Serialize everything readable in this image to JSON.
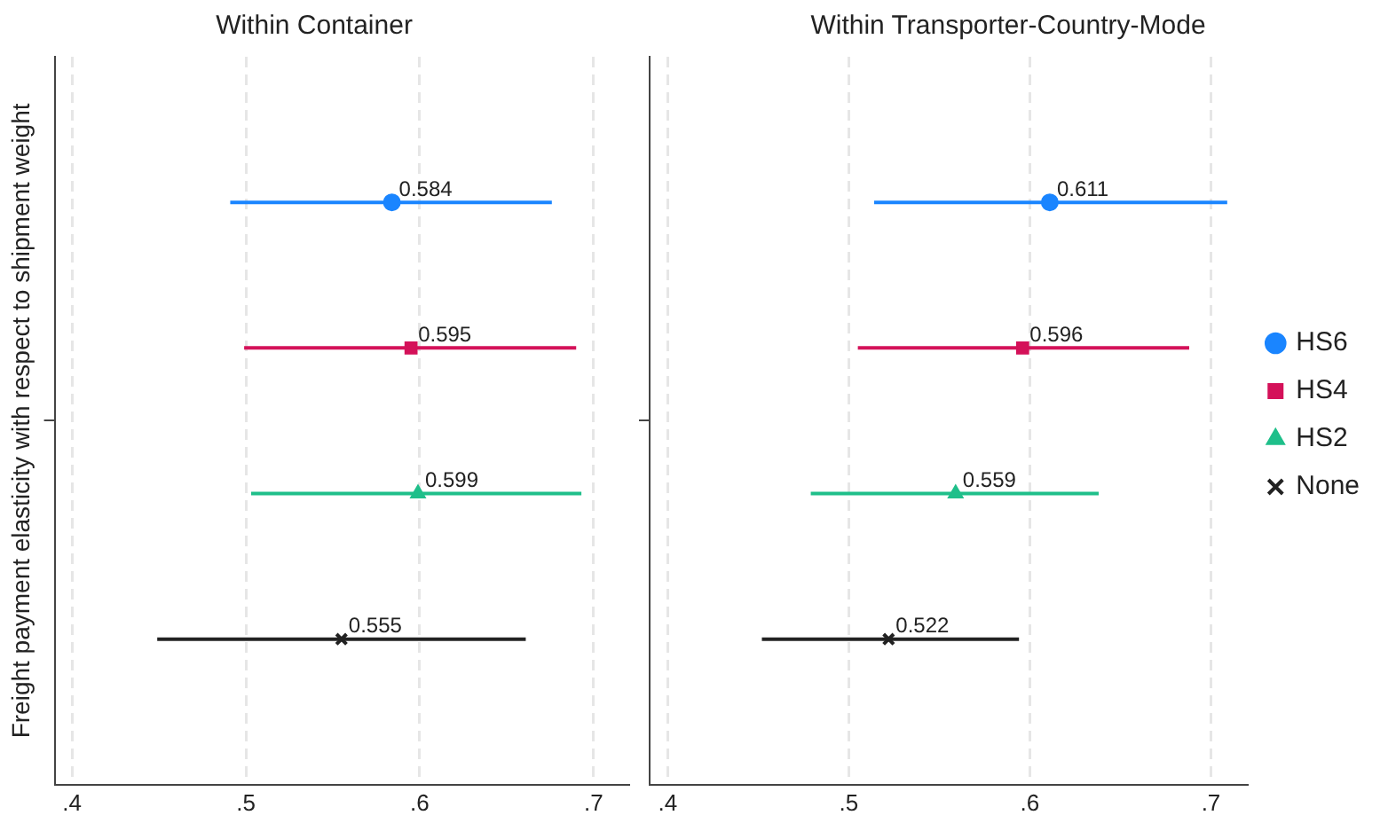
{
  "chart_data": [
    {
      "type": "scatter",
      "title": "Within Container",
      "ylabel": "Freight payment elasticity with respect to shipment weight",
      "orientation": "horizontal",
      "categories": [
        null
      ],
      "xlim": [
        0.39,
        0.72
      ],
      "xticks": [
        {
          "value": 0.4,
          "label": ".4"
        },
        {
          "value": 0.5,
          "label": ".5"
        },
        {
          "value": 0.6,
          "label": ".6"
        },
        {
          "value": 0.7,
          "label": ".7"
        }
      ],
      "grid": "x",
      "legend": false,
      "tick_labels": "x",
      "data_labels": true,
      "series": [
        {
          "color": "#1a85ff",
          "marker": "circle",
          "values": [
            0.584
          ],
          "errors": [
            [
              0.491,
              0.676
            ]
          ]
        },
        {
          "color": "#d41159",
          "marker": "square",
          "values": [
            0.595
          ],
          "errors": [
            [
              0.499,
              0.69
            ]
          ]
        },
        {
          "color": "#1fbf8a",
          "marker": "triangle",
          "values": [
            0.599
          ],
          "errors": [
            [
              0.503,
              0.693
            ]
          ]
        },
        {
          "color": "#222222",
          "marker": "cross",
          "values": [
            0.555
          ],
          "errors": [
            [
              0.449,
              0.661
            ]
          ]
        }
      ]
    },
    {
      "type": "scatter",
      "title": "Within Transporter-Country-Mode",
      "orientation": "horizontal",
      "categories": [
        null
      ],
      "xlim": [
        0.39,
        0.72
      ],
      "xticks": [
        {
          "value": 0.4,
          "label": ".4"
        },
        {
          "value": 0.5,
          "label": ".5"
        },
        {
          "value": 0.6,
          "label": ".6"
        },
        {
          "value": 0.7,
          "label": ".7"
        }
      ],
      "grid": "x",
      "legend": "right",
      "tick_labels": "x",
      "data_labels": true,
      "series": [
        {
          "name": "HS6",
          "color": "#1a85ff",
          "marker": "circle",
          "values": [
            0.611
          ],
          "errors": [
            [
              0.514,
              0.709
            ]
          ]
        },
        {
          "name": "HS4",
          "color": "#d41159",
          "marker": "square",
          "values": [
            0.596
          ],
          "errors": [
            [
              0.505,
              0.688
            ]
          ]
        },
        {
          "name": "HS2",
          "color": "#1fbf8a",
          "marker": "triangle",
          "values": [
            0.559
          ],
          "errors": [
            [
              0.479,
              0.638
            ]
          ]
        },
        {
          "name": "None",
          "color": "#222222",
          "marker": "cross",
          "values": [
            0.522
          ],
          "errors": [
            [
              0.452,
              0.594
            ]
          ]
        }
      ]
    }
  ]
}
